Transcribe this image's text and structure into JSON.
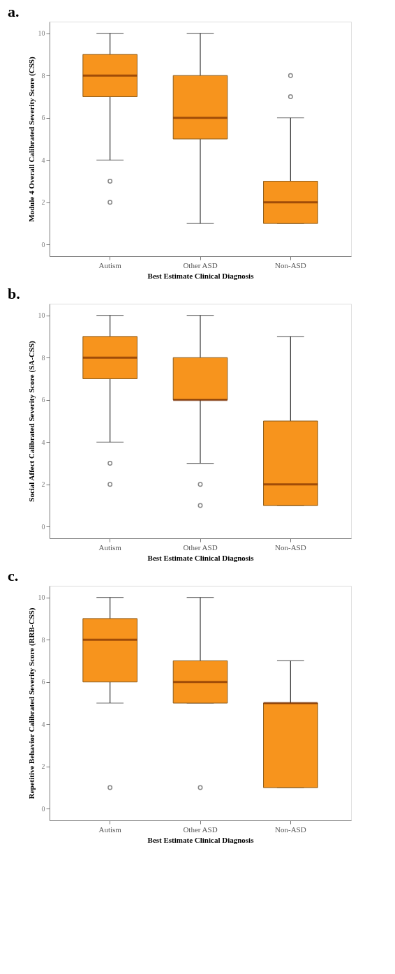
{
  "chart_data": [
    {
      "type": "box",
      "title": "a.",
      "xlabel": "Best Estimate Clinical Diagnosis",
      "ylabel": "Module 4 Overall Calibrated Severity Score (CSS)",
      "categories": [
        "Autism",
        "Other ASD",
        "Non-ASD"
      ],
      "color": "#f7941d",
      "marker": "circle",
      "ylim": [
        -0.55,
        10.55
      ],
      "yticks": [
        0,
        2,
        4,
        6,
        8,
        10
      ],
      "boxes": [
        {
          "low": 4,
          "q1": 7,
          "median": 8,
          "q3": 9,
          "high": 10,
          "outliers": [
            3,
            2
          ]
        },
        {
          "low": 1,
          "q1": 5,
          "median": 6,
          "q3": 8,
          "high": 10
        },
        {
          "low": 1,
          "q1": 1,
          "median": 2,
          "q3": 3,
          "high": 6,
          "outliers": [
            8,
            7
          ]
        }
      ]
    },
    {
      "type": "box",
      "title": "b.",
      "xlabel": "Best Estimate Clinical Diagnosis",
      "ylabel": "Social Affect Calibrated Severity Score (SA-CSS)",
      "categories": [
        "Autism",
        "Other ASD",
        "Non-ASD"
      ],
      "color": "#f7941d",
      "marker": "circle",
      "ylim": [
        -0.55,
        10.55
      ],
      "yticks": [
        0,
        2,
        4,
        6,
        8,
        10
      ],
      "boxes": [
        {
          "low": 4,
          "q1": 7,
          "median": 8,
          "q3": 9,
          "high": 10,
          "outliers": [
            3,
            2
          ]
        },
        {
          "low": 3,
          "q1": 6,
          "median": 6,
          "q3": 8,
          "high": 10,
          "outliers": [
            2,
            1
          ]
        },
        {
          "low": 1,
          "q1": 1,
          "median": 2,
          "q3": 5,
          "high": 9
        }
      ]
    },
    {
      "type": "box",
      "title": "c.",
      "xlabel": "Best Estimate Clinical Diagnosis",
      "ylabel": "Repetitive Behavior Calibrated Severity Score (RRB-CSS)",
      "categories": [
        "Autism",
        "Other ASD",
        "Non-ASD"
      ],
      "color": "#f7941d",
      "marker": "circle",
      "ylim": [
        -0.55,
        10.55
      ],
      "yticks": [
        0,
        2,
        4,
        6,
        8,
        10
      ],
      "boxes": [
        {
          "low": 5,
          "q1": 6,
          "median": 8,
          "q3": 9,
          "high": 10,
          "outliers": [
            1
          ]
        },
        {
          "low": 5,
          "q1": 5,
          "median": 6,
          "q3": 7,
          "high": 10,
          "outliers": [
            1
          ]
        },
        {
          "low": 1,
          "q1": 1,
          "median": 5,
          "q3": 5,
          "high": 7
        }
      ]
    }
  ]
}
